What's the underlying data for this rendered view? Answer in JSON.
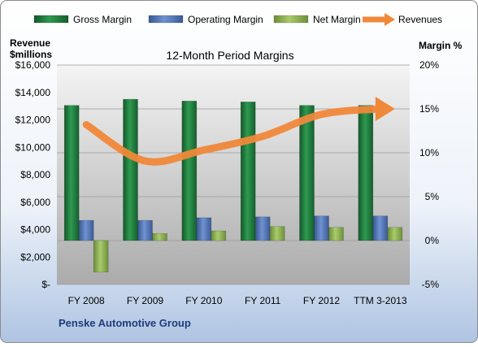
{
  "chart_data": {
    "type": "bar",
    "title": "12-Month Period Margins",
    "company": "Penske Automotive Group",
    "left_axis_title": [
      "Revenue",
      "$millions"
    ],
    "right_axis_title": "Margin %",
    "categories": [
      "FY 2008",
      "FY 2009",
      "FY 2010",
      "FY 2011",
      "FY 2012",
      "TTM 3-2013"
    ],
    "left_axis": {
      "min": 0,
      "max": 16000,
      "step": 2000,
      "tick_labels": [
        "$-",
        "$2,000",
        "$4,000",
        "$6,000",
        "$8,000",
        "$10,000",
        "$12,000",
        "$14,000",
        "$16,000"
      ]
    },
    "right_axis": {
      "min": -5,
      "max": 20,
      "step": 5,
      "tick_labels": [
        "-5%",
        "0%",
        "5%",
        "10%",
        "15%",
        "20%"
      ]
    },
    "series": [
      {
        "name": "Gross Margin",
        "axis": "right",
        "kind": "bar",
        "color": "#1E7A3C",
        "values": [
          15.4,
          16.1,
          15.9,
          15.8,
          15.4,
          15.4
        ]
      },
      {
        "name": "Operating Margin",
        "axis": "right",
        "kind": "bar",
        "color": "#4F73B8",
        "values": [
          2.3,
          2.3,
          2.6,
          2.7,
          2.8,
          2.8
        ]
      },
      {
        "name": "Net Margin",
        "axis": "right",
        "kind": "bar",
        "color": "#8DB54F",
        "values": [
          -3.6,
          0.8,
          1.1,
          1.6,
          1.5,
          1.5
        ]
      },
      {
        "name": "Revenues",
        "axis": "left",
        "kind": "line",
        "color": "#F0883A",
        "values": [
          11650,
          9000,
          9800,
          10800,
          12400,
          12800
        ]
      }
    ],
    "grid": true,
    "legend_position": "top"
  }
}
